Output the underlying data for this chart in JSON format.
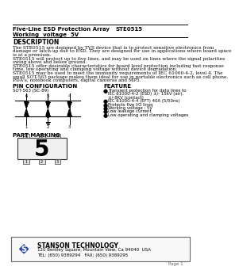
{
  "title_left": "Five-Line ESD Protection Array",
  "title_right": "STE0515",
  "subtitle": "Working  voltage  5V",
  "section_description": "DESCRIPTION",
  "desc_text": [
    "The STE0515 are designed by TVS device that is to protect sensitive electronics from",
    "damage or latch-up due to ESD. They are designed for use in applications where board space",
    "is at a premium.",
    "STE0515 will protect up to five lines, and may be used on lines where the signal polarities",
    "swing above and below ground.",
    "STE0515 offer desirable characteristics for board level protection including fast response",
    "time, low operating and clamping voltage without device degradation.",
    "STE0515 may be used to meet the immunity requirements of IEC 61000-4-2, level 4. The",
    "small SOT-563 package makes them ideal for use in portable electronics such as cell phone,",
    "PDA's, notebook computers, digital cameras and MP3."
  ],
  "pin_config_title": "PIN CONFIGURATION",
  "pin_config_subtitle": "SOT-563 (SC-89)",
  "feature_title": "FEATURE",
  "feature_items": [
    "Transient protection for data lines to",
    "IEC 61000-4-2 (ESD) ±/- 15kV (air),",
    "±/-8KV (contact)",
    "IEC 61000-4-4 (EFT) 40A (5/50ns)",
    "Protects five I/O lines",
    "Working voltage : 5V",
    "Low leakage current",
    "Low operating and clamping voltages"
  ],
  "part_marking_title": "PART MARKING",
  "part_marking_number": "5",
  "company_name": "STANSON TECHNOLOGY",
  "company_address": "120 Bentley Square, Mountain View, Ca 94040  USA",
  "company_tel": "TEL: (650) 9389294   FAX: (650) 9389295",
  "page_text": "Page 1",
  "bg_color": "#ffffff",
  "text_color": "#000000"
}
